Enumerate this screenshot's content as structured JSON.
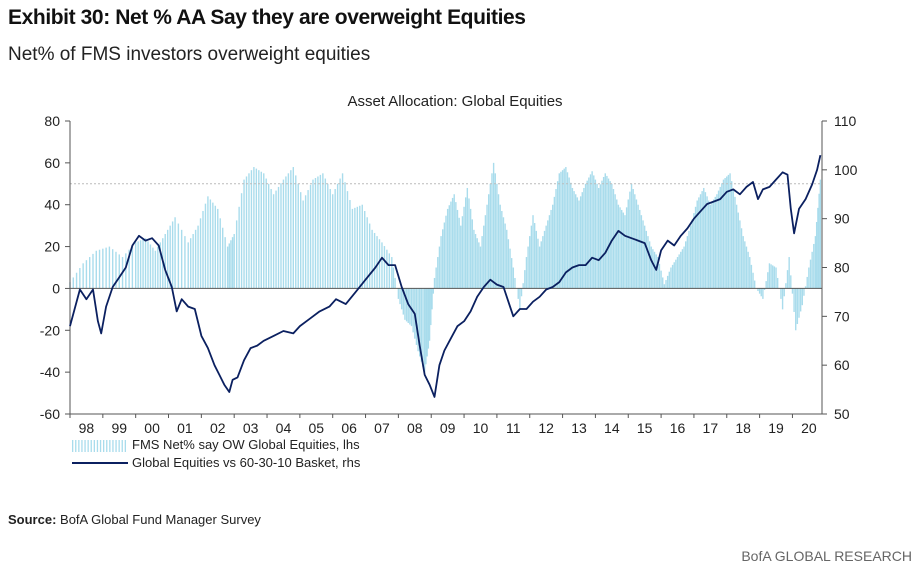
{
  "exhibit_title": "Exhibit 30: Net % AA Say they are overweight Equities",
  "subtitle": "Net% of FMS investors overweight equities",
  "source_label": "Source:",
  "source_text": "BofA Global Fund Manager Survey",
  "brand": "BofA GLOBAL RESEARCH",
  "colors": {
    "bars": "#a9dcec",
    "line": "#0b2060",
    "axis": "#555555",
    "reference": "#bbbbbb"
  },
  "chart_data": {
    "type": "bar+line",
    "title": "Asset Allocation: Global Equities",
    "x_tick_labels": [
      "98",
      "99",
      "00",
      "01",
      "02",
      "03",
      "04",
      "05",
      "06",
      "07",
      "08",
      "09",
      "10",
      "11",
      "12",
      "13",
      "14",
      "15",
      "16",
      "17",
      "18",
      "19",
      "20"
    ],
    "x_range": [
      1998.0,
      2020.9
    ],
    "left_axis": {
      "ylim": [
        -60,
        80
      ],
      "ticks": [
        -60,
        -40,
        -20,
        0,
        20,
        40,
        60,
        80
      ]
    },
    "right_axis": {
      "ylim": [
        50,
        110
      ],
      "ticks": [
        50,
        60,
        70,
        80,
        90,
        100,
        110
      ]
    },
    "reference_line": {
      "value": 50,
      "axis": "lhs",
      "style": "dotted"
    },
    "series": [
      {
        "name": "FMS Net% say OW Global Equities, lhs",
        "type": "bar",
        "axis": "lhs",
        "points": [
          [
            1998.0,
            3
          ],
          [
            1998.4,
            12
          ],
          [
            1998.8,
            18
          ],
          [
            1999.2,
            20
          ],
          [
            1999.6,
            15
          ],
          [
            2000.0,
            22
          ],
          [
            2000.3,
            24
          ],
          [
            2000.6,
            18
          ],
          [
            2000.9,
            26
          ],
          [
            2001.2,
            34
          ],
          [
            2001.6,
            22
          ],
          [
            2001.9,
            30
          ],
          [
            2002.2,
            44
          ],
          [
            2002.5,
            38
          ],
          [
            2002.8,
            20
          ],
          [
            2003.0,
            26
          ],
          [
            2003.3,
            52
          ],
          [
            2003.6,
            58
          ],
          [
            2003.9,
            55
          ],
          [
            2004.2,
            45
          ],
          [
            2004.5,
            52
          ],
          [
            2004.8,
            58
          ],
          [
            2005.1,
            42
          ],
          [
            2005.4,
            52
          ],
          [
            2005.7,
            55
          ],
          [
            2006.0,
            45
          ],
          [
            2006.3,
            55
          ],
          [
            2006.6,
            38
          ],
          [
            2006.9,
            40
          ],
          [
            2007.2,
            28
          ],
          [
            2007.5,
            22
          ],
          [
            2007.8,
            15
          ],
          [
            2008.0,
            -5
          ],
          [
            2008.2,
            -15
          ],
          [
            2008.4,
            -18
          ],
          [
            2008.6,
            -30
          ],
          [
            2008.8,
            -40
          ],
          [
            2008.95,
            -25
          ],
          [
            2009.1,
            5
          ],
          [
            2009.3,
            25
          ],
          [
            2009.5,
            38
          ],
          [
            2009.7,
            45
          ],
          [
            2009.9,
            30
          ],
          [
            2010.1,
            48
          ],
          [
            2010.3,
            28
          ],
          [
            2010.5,
            20
          ],
          [
            2010.7,
            40
          ],
          [
            2010.9,
            60
          ],
          [
            2011.1,
            40
          ],
          [
            2011.3,
            28
          ],
          [
            2011.5,
            10
          ],
          [
            2011.7,
            -10
          ],
          [
            2011.9,
            15
          ],
          [
            2012.1,
            35
          ],
          [
            2012.3,
            20
          ],
          [
            2012.5,
            30
          ],
          [
            2012.7,
            40
          ],
          [
            2012.9,
            55
          ],
          [
            2013.1,
            58
          ],
          [
            2013.3,
            48
          ],
          [
            2013.5,
            42
          ],
          [
            2013.7,
            50
          ],
          [
            2013.9,
            56
          ],
          [
            2014.1,
            48
          ],
          [
            2014.3,
            55
          ],
          [
            2014.5,
            50
          ],
          [
            2014.7,
            40
          ],
          [
            2014.9,
            35
          ],
          [
            2015.1,
            50
          ],
          [
            2015.3,
            40
          ],
          [
            2015.5,
            30
          ],
          [
            2015.7,
            20
          ],
          [
            2015.9,
            15
          ],
          [
            2016.1,
            2
          ],
          [
            2016.3,
            10
          ],
          [
            2016.5,
            15
          ],
          [
            2016.7,
            20
          ],
          [
            2016.9,
            30
          ],
          [
            2017.1,
            42
          ],
          [
            2017.3,
            48
          ],
          [
            2017.5,
            40
          ],
          [
            2017.7,
            45
          ],
          [
            2017.9,
            52
          ],
          [
            2018.1,
            55
          ],
          [
            2018.3,
            40
          ],
          [
            2018.5,
            25
          ],
          [
            2018.7,
            15
          ],
          [
            2018.9,
            0
          ],
          [
            2019.1,
            -5
          ],
          [
            2019.3,
            12
          ],
          [
            2019.5,
            10
          ],
          [
            2019.7,
            -10
          ],
          [
            2019.9,
            15
          ],
          [
            2020.1,
            -20
          ],
          [
            2020.3,
            -8
          ],
          [
            2020.5,
            10
          ],
          [
            2020.7,
            25
          ],
          [
            2020.85,
            52
          ]
        ]
      },
      {
        "name": "Global Equities vs 60-30-10 Basket, rhs",
        "type": "line",
        "axis": "rhs",
        "points": [
          [
            1998.0,
            68.0
          ],
          [
            1998.3,
            75.5
          ],
          [
            1998.5,
            73.5
          ],
          [
            1998.7,
            75.5
          ],
          [
            1998.85,
            69.0
          ],
          [
            1998.95,
            66.5
          ],
          [
            1999.1,
            72.0
          ],
          [
            1999.3,
            76.0
          ],
          [
            1999.5,
            78.0
          ],
          [
            1999.7,
            80.0
          ],
          [
            1999.9,
            84.5
          ],
          [
            2000.1,
            86.5
          ],
          [
            2000.3,
            85.5
          ],
          [
            2000.5,
            86.0
          ],
          [
            2000.7,
            84.5
          ],
          [
            2000.9,
            79.5
          ],
          [
            2001.1,
            76.0
          ],
          [
            2001.25,
            71.0
          ],
          [
            2001.4,
            73.5
          ],
          [
            2001.6,
            72.0
          ],
          [
            2001.8,
            71.5
          ],
          [
            2002.0,
            66.0
          ],
          [
            2002.2,
            63.5
          ],
          [
            2002.4,
            60.0
          ],
          [
            2002.55,
            58.0
          ],
          [
            2002.7,
            56.0
          ],
          [
            2002.85,
            54.5
          ],
          [
            2002.95,
            57.0
          ],
          [
            2003.1,
            57.5
          ],
          [
            2003.3,
            61.0
          ],
          [
            2003.5,
            63.5
          ],
          [
            2003.7,
            64.0
          ],
          [
            2003.9,
            65.0
          ],
          [
            2004.2,
            66.0
          ],
          [
            2004.5,
            67.0
          ],
          [
            2004.8,
            66.5
          ],
          [
            2005.0,
            68.0
          ],
          [
            2005.3,
            69.5
          ],
          [
            2005.6,
            71.0
          ],
          [
            2005.9,
            72.0
          ],
          [
            2006.1,
            73.5
          ],
          [
            2006.4,
            72.5
          ],
          [
            2006.7,
            75.0
          ],
          [
            2007.0,
            77.5
          ],
          [
            2007.3,
            80.0
          ],
          [
            2007.5,
            82.0
          ],
          [
            2007.7,
            80.5
          ],
          [
            2007.9,
            80.5
          ],
          [
            2008.1,
            76.0
          ],
          [
            2008.3,
            72.5
          ],
          [
            2008.5,
            70.5
          ],
          [
            2008.65,
            64.0
          ],
          [
            2008.8,
            58.0
          ],
          [
            2008.95,
            56.0
          ],
          [
            2009.1,
            53.5
          ],
          [
            2009.25,
            60.0
          ],
          [
            2009.4,
            63.0
          ],
          [
            2009.6,
            65.5
          ],
          [
            2009.8,
            68.0
          ],
          [
            2010.0,
            69.0
          ],
          [
            2010.2,
            71.0
          ],
          [
            2010.4,
            74.0
          ],
          [
            2010.6,
            76.0
          ],
          [
            2010.8,
            77.5
          ],
          [
            2011.0,
            76.5
          ],
          [
            2011.2,
            76.0
          ],
          [
            2011.35,
            73.0
          ],
          [
            2011.5,
            70.0
          ],
          [
            2011.7,
            71.5
          ],
          [
            2011.9,
            71.5
          ],
          [
            2012.1,
            73.0
          ],
          [
            2012.3,
            74.0
          ],
          [
            2012.5,
            75.5
          ],
          [
            2012.7,
            76.0
          ],
          [
            2012.9,
            77.0
          ],
          [
            2013.1,
            79.0
          ],
          [
            2013.3,
            80.0
          ],
          [
            2013.5,
            80.5
          ],
          [
            2013.7,
            80.5
          ],
          [
            2013.9,
            82.0
          ],
          [
            2014.1,
            81.5
          ],
          [
            2014.3,
            83.0
          ],
          [
            2014.5,
            85.5
          ],
          [
            2014.7,
            87.5
          ],
          [
            2014.9,
            86.5
          ],
          [
            2015.1,
            86.0
          ],
          [
            2015.3,
            85.5
          ],
          [
            2015.5,
            85.0
          ],
          [
            2015.7,
            81.5
          ],
          [
            2015.85,
            79.5
          ],
          [
            2016.0,
            83.5
          ],
          [
            2016.2,
            85.5
          ],
          [
            2016.4,
            84.5
          ],
          [
            2016.6,
            86.5
          ],
          [
            2016.8,
            88.0
          ],
          [
            2017.0,
            90.0
          ],
          [
            2017.2,
            91.5
          ],
          [
            2017.4,
            93.0
          ],
          [
            2017.6,
            93.5
          ],
          [
            2017.8,
            94.0
          ],
          [
            2018.0,
            95.5
          ],
          [
            2018.2,
            96.0
          ],
          [
            2018.4,
            95.0
          ],
          [
            2018.6,
            96.5
          ],
          [
            2018.8,
            97.5
          ],
          [
            2018.95,
            94.0
          ],
          [
            2019.1,
            96.0
          ],
          [
            2019.3,
            96.5
          ],
          [
            2019.5,
            98.0
          ],
          [
            2019.7,
            99.5
          ],
          [
            2019.85,
            99.0
          ],
          [
            2019.95,
            92.0
          ],
          [
            2020.05,
            87.0
          ],
          [
            2020.2,
            92.0
          ],
          [
            2020.4,
            94.0
          ],
          [
            2020.6,
            97.0
          ],
          [
            2020.75,
            100.0
          ],
          [
            2020.85,
            103.0
          ]
        ]
      }
    ]
  }
}
